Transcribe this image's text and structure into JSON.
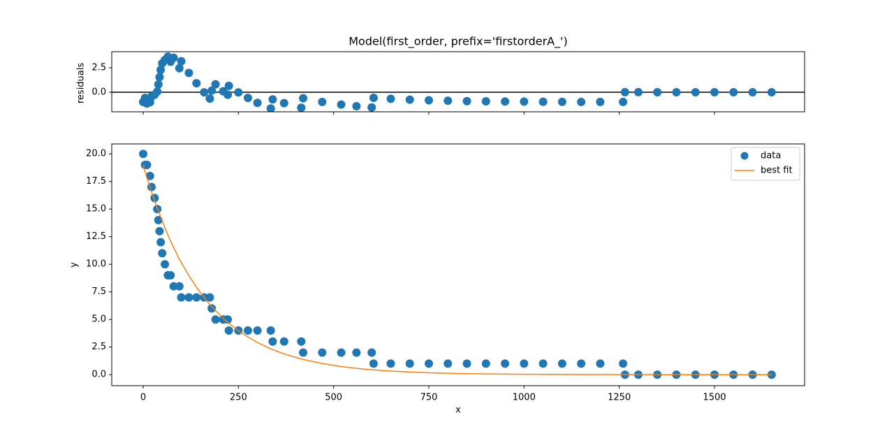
{
  "chart_data": [
    {
      "type": "scatter",
      "title": "Model(first_order, prefix='firstorderA_')",
      "y_label": "residuals",
      "color": "#1f77b4",
      "x": [
        0,
        5,
        10,
        18,
        22,
        30,
        37,
        40,
        43,
        46,
        50,
        57,
        65,
        72,
        80,
        95,
        100,
        120,
        140,
        160,
        175,
        180,
        190,
        210,
        222,
        225,
        250,
        275,
        300,
        335,
        340,
        370,
        415,
        420,
        470,
        520,
        560,
        600,
        605,
        650,
        700,
        750,
        800,
        850,
        900,
        950,
        1000,
        1050,
        1100,
        1150,
        1200,
        1260,
        1265,
        1300,
        1350,
        1400,
        1450,
        1500,
        1550,
        1600,
        1650
      ],
      "values": [
        -1.0,
        -0.58,
        -1.15,
        -1.02,
        -0.44,
        -0.25,
        0.07,
        0.8,
        1.54,
        2.28,
        2.95,
        3.3,
        3.64,
        3.11,
        3.52,
        2.45,
        3.17,
        1.97,
        0.92,
        -0.01,
        -0.65,
        0.17,
        0.81,
        0.1,
        -0.26,
        0.65,
        -0.02,
        -0.58,
        -1.09,
        -1.66,
        -0.73,
        -1.12,
        -1.58,
        -0.62,
        -0.99,
        -1.26,
        -1.43,
        -1.55,
        -0.57,
        -0.67,
        -0.76,
        -0.82,
        -0.87,
        -0.91,
        -0.93,
        -0.95,
        -0.96,
        -0.97,
        -0.98,
        -0.99,
        -0.99,
        -0.99,
        0.01,
        0.01,
        0,
        0,
        0,
        0,
        0,
        0,
        0
      ],
      "hline": 0,
      "xlim": [
        -82.5,
        1736.6
      ],
      "xticks_shared": [
        0,
        250,
        500,
        750,
        1000,
        1250,
        1500
      ],
      "ylim": [
        -2.0,
        4.14
      ],
      "yticks": [
        {
          "value": 0,
          "label": "0.0"
        },
        2.5
      ]
    },
    {
      "type": "line",
      "x_label": "x",
      "y_label": "y",
      "legend": "upper right",
      "x": [
        0,
        5,
        10,
        18,
        22,
        30,
        37,
        40,
        43,
        46,
        50,
        57,
        65,
        72,
        80,
        95,
        100,
        120,
        140,
        160,
        175,
        180,
        190,
        210,
        222,
        225,
        250,
        275,
        300,
        335,
        340,
        370,
        415,
        420,
        470,
        520,
        560,
        600,
        605,
        650,
        700,
        750,
        800,
        850,
        900,
        950,
        1000,
        1050,
        1100,
        1150,
        1200,
        1260,
        1265,
        1300,
        1350,
        1400,
        1450,
        1500,
        1550,
        1600,
        1650
      ],
      "series": [
        {
          "name": "data",
          "mode": "markers",
          "color": "#1f77b4",
          "values": [
            20,
            19,
            19,
            18,
            17,
            16,
            15,
            14,
            13,
            12,
            11,
            10,
            9,
            9,
            8,
            8,
            7,
            7,
            7,
            7,
            7,
            6,
            5,
            5,
            5,
            4,
            4,
            4,
            4,
            4,
            3,
            3,
            3,
            2,
            2,
            2,
            2,
            2,
            1,
            1,
            1,
            1,
            1,
            1,
            1,
            1,
            1,
            1,
            1,
            1,
            1,
            1,
            0,
            0,
            0,
            0,
            0,
            0,
            0,
            0,
            0
          ]
        },
        {
          "name": "best fit",
          "mode": "line",
          "color": "#ff7f0e",
          "values": [
            19.0,
            18.42,
            17.85,
            16.98,
            16.56,
            15.75,
            15.07,
            14.8,
            14.54,
            14.28,
            13.95,
            13.3,
            12.64,
            12.11,
            11.52,
            10.45,
            10.17,
            8.97,
            7.92,
            6.99,
            6.35,
            6.17,
            5.81,
            5.1,
            4.74,
            4.65,
            3.98,
            3.42,
            2.91,
            2.34,
            2.27,
            1.88,
            1.42,
            1.38,
            1.01,
            0.74,
            0.57,
            0.45,
            0.43,
            0.33,
            0.24,
            0.17,
            0.13,
            0.09,
            0.07,
            0.05,
            0.04,
            0.03,
            0.02,
            0.01,
            0.01,
            0.01,
            0.01,
            0.01,
            0,
            0,
            0,
            0,
            0,
            0,
            0
          ]
        }
      ],
      "xlim": [
        -82.5,
        1736.6
      ],
      "xticks": [
        0,
        250,
        500,
        750,
        1000,
        1250,
        1500
      ],
      "ylim": [
        -1.0,
        20.9
      ],
      "yticks": [
        {
          "value": 0,
          "label": "0.0"
        },
        2.5,
        {
          "value": 5,
          "label": "5.0"
        },
        7.5,
        {
          "value": 10,
          "label": "10.0"
        },
        12.5,
        {
          "value": 15,
          "label": "15.0"
        },
        17.5,
        {
          "value": 20,
          "label": "20.0"
        }
      ]
    }
  ]
}
